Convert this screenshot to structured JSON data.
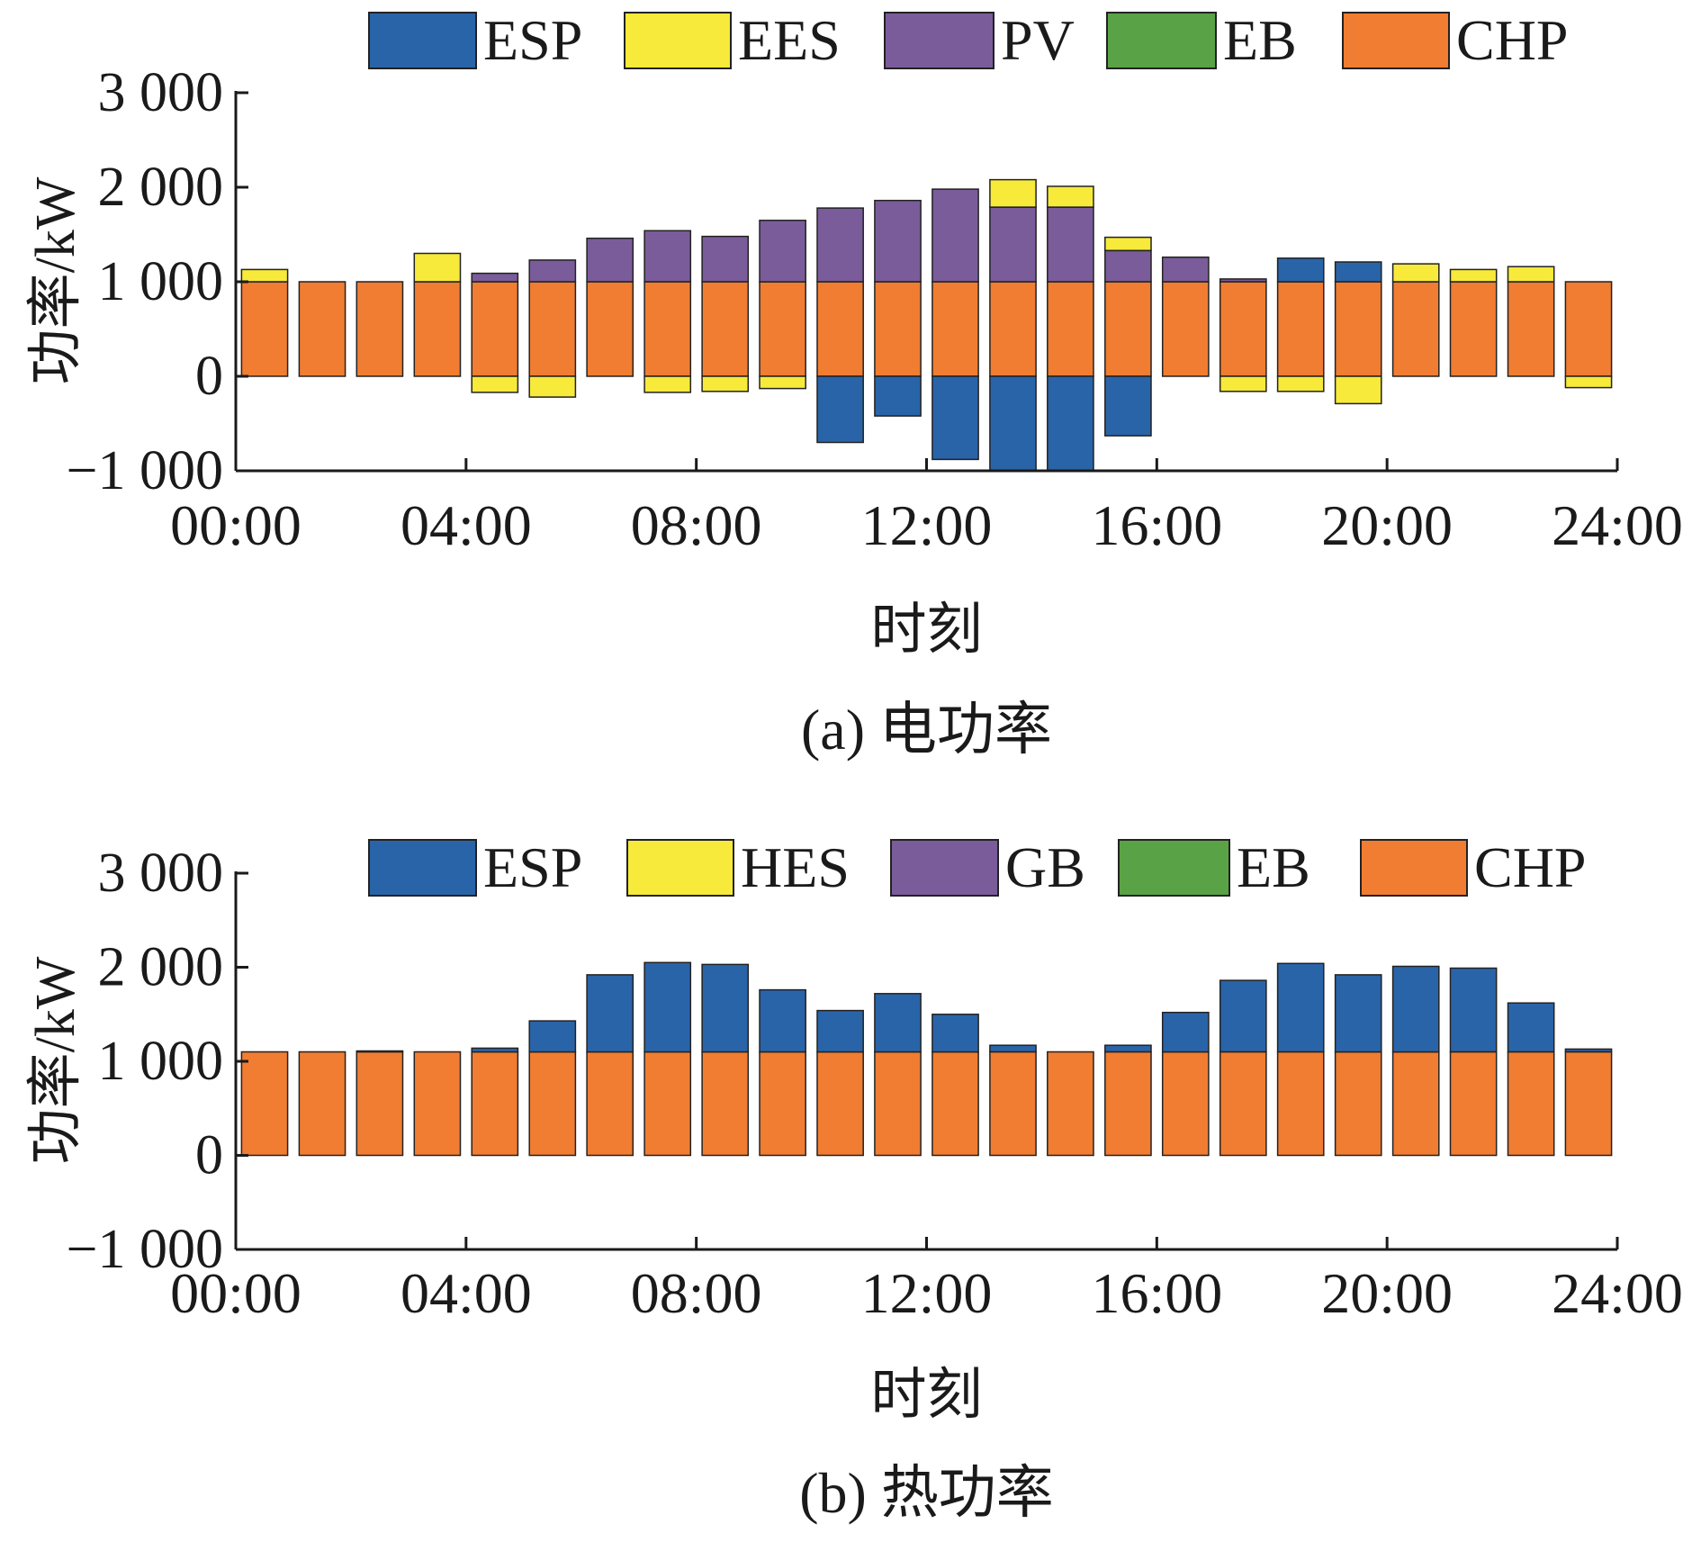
{
  "colors": {
    "ESP": "#2a64a8",
    "EES": "#f7ea3a",
    "HES": "#f7ea3a",
    "PV": "#7a5c9a",
    "GB": "#7a5c9a",
    "EB": "#5aa246",
    "CHP": "#f07d32",
    "axis": "#1a1a1a",
    "bar_edge": "#222222"
  },
  "chart_data": [
    {
      "type": "bar",
      "stacked": true,
      "caption": "(a) 电功率",
      "xlabel": "时刻",
      "ylabel": "功率/kW",
      "ylim": [
        -1000,
        3000
      ],
      "yticks": [
        -1000,
        0,
        1000,
        2000,
        3000
      ],
      "ytick_labels": [
        "−1 000",
        "0",
        "1 000",
        "2 000",
        "3 000"
      ],
      "xticks": [
        0,
        4,
        8,
        12,
        16,
        20,
        24
      ],
      "xtick_labels": [
        "00:00",
        "04:00",
        "08:00",
        "12:00",
        "16:00",
        "20:00",
        "24:00"
      ],
      "xlim": [
        0,
        24
      ],
      "legend_position": "top",
      "grid": false,
      "categories": [
        "1",
        "2",
        "3",
        "4",
        "5",
        "6",
        "7",
        "8",
        "9",
        "10",
        "11",
        "12",
        "13",
        "14",
        "15",
        "16",
        "17",
        "18",
        "19",
        "20",
        "21",
        "22",
        "23",
        "24"
      ],
      "series": [
        {
          "name": "CHP",
          "values": [
            1000,
            1000,
            1000,
            1000,
            1000,
            1000,
            1000,
            1000,
            1000,
            1000,
            1000,
            1000,
            1000,
            1000,
            1000,
            1000,
            1000,
            1000,
            1000,
            1000,
            1000,
            1000,
            1000,
            1000
          ]
        },
        {
          "name": "EB",
          "values": [
            0,
            0,
            0,
            0,
            0,
            0,
            0,
            0,
            0,
            0,
            0,
            0,
            0,
            0,
            0,
            0,
            0,
            0,
            0,
            0,
            0,
            0,
            0,
            0
          ]
        },
        {
          "name": "PV",
          "values": [
            0,
            0,
            0,
            0,
            90,
            230,
            460,
            540,
            480,
            650,
            780,
            860,
            980,
            790,
            790,
            330,
            260,
            30,
            0,
            0,
            0,
            0,
            0,
            0
          ]
        },
        {
          "name": "EES",
          "values": [
            130,
            0,
            0,
            300,
            -170,
            -220,
            0,
            -170,
            -160,
            -130,
            0,
            0,
            0,
            290,
            220,
            140,
            0,
            -160,
            -160,
            -290,
            190,
            130,
            160,
            -120
          ]
        },
        {
          "name": "ESP",
          "values": [
            0,
            0,
            0,
            0,
            0,
            0,
            0,
            0,
            0,
            0,
            -700,
            -420,
            -880,
            -1000,
            -1000,
            -630,
            0,
            0,
            250,
            210,
            0,
            0,
            0,
            0
          ]
        }
      ]
    },
    {
      "type": "bar",
      "stacked": true,
      "caption": "(b) 热功率",
      "xlabel": "时刻",
      "ylabel": "功率/kW",
      "ylim": [
        -1000,
        3000
      ],
      "yticks": [
        -1000,
        0,
        1000,
        2000,
        3000
      ],
      "ytick_labels": [
        "−1 000",
        "0",
        "1 000",
        "2 000",
        "3 000"
      ],
      "xticks": [
        0,
        4,
        8,
        12,
        16,
        20,
        24
      ],
      "xtick_labels": [
        "00:00",
        "04:00",
        "08:00",
        "12:00",
        "16:00",
        "20:00",
        "24:00"
      ],
      "xlim": [
        0,
        24
      ],
      "legend_position": "top",
      "grid": false,
      "categories": [
        "1",
        "2",
        "3",
        "4",
        "5",
        "6",
        "7",
        "8",
        "9",
        "10",
        "11",
        "12",
        "13",
        "14",
        "15",
        "16",
        "17",
        "18",
        "19",
        "20",
        "21",
        "22",
        "23",
        "24"
      ],
      "series": [
        {
          "name": "CHP",
          "values": [
            1100,
            1100,
            1100,
            1100,
            1100,
            1100,
            1100,
            1100,
            1100,
            1100,
            1100,
            1100,
            1100,
            1100,
            1100,
            1100,
            1100,
            1100,
            1100,
            1100,
            1100,
            1100,
            1100,
            1100
          ]
        },
        {
          "name": "EB",
          "values": [
            0,
            0,
            0,
            0,
            0,
            0,
            0,
            0,
            0,
            0,
            0,
            0,
            0,
            0,
            0,
            0,
            0,
            0,
            0,
            0,
            0,
            0,
            0,
            0
          ]
        },
        {
          "name": "GB",
          "values": [
            0,
            0,
            0,
            0,
            0,
            0,
            0,
            0,
            0,
            0,
            0,
            0,
            0,
            0,
            0,
            0,
            0,
            0,
            0,
            0,
            0,
            0,
            0,
            0
          ]
        },
        {
          "name": "HES",
          "values": [
            0,
            0,
            0,
            0,
            0,
            0,
            0,
            0,
            0,
            0,
            0,
            0,
            0,
            0,
            0,
            0,
            0,
            0,
            0,
            0,
            0,
            0,
            0,
            0
          ]
        },
        {
          "name": "ESP",
          "values": [
            0,
            0,
            10,
            0,
            40,
            330,
            820,
            950,
            930,
            660,
            440,
            620,
            400,
            70,
            0,
            70,
            420,
            760,
            940,
            820,
            910,
            890,
            520,
            30
          ]
        }
      ]
    }
  ],
  "legends": [
    [
      "ESP",
      "EES",
      "PV",
      "EB",
      "CHP"
    ],
    [
      "ESP",
      "HES",
      "GB",
      "EB",
      "CHP"
    ]
  ]
}
